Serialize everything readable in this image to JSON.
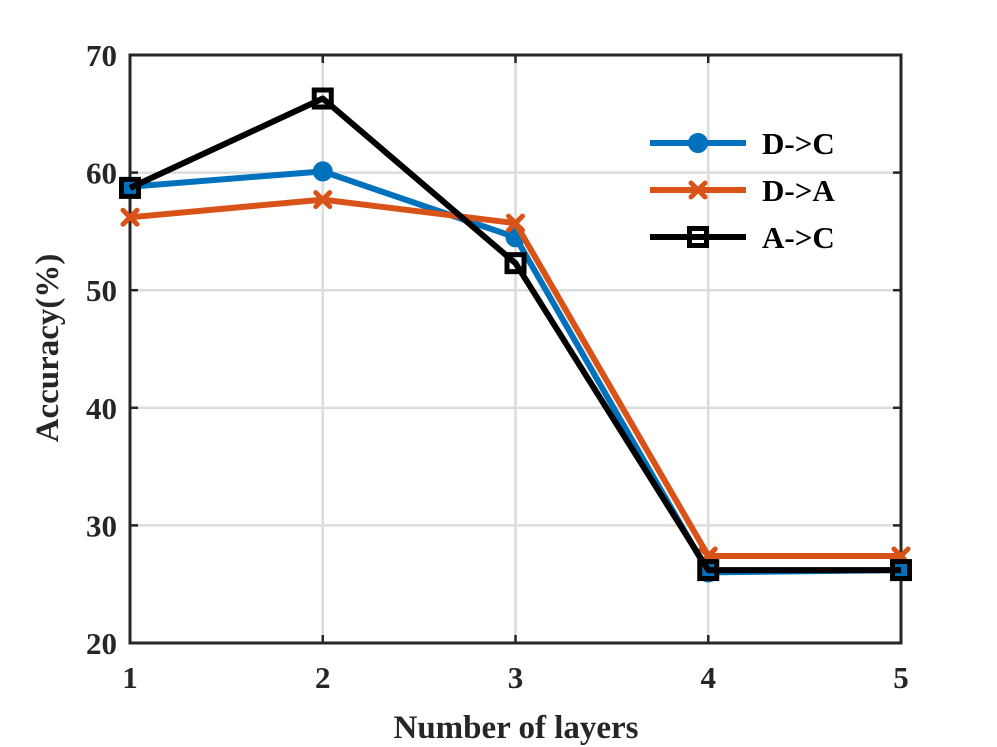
{
  "chart_data": {
    "type": "line",
    "xlabel": "Number of layers",
    "ylabel": "Accuracy(%)",
    "x": [
      1,
      2,
      3,
      4,
      5
    ],
    "xticks": [
      "1",
      "2",
      "3",
      "4",
      "5"
    ],
    "yticks": [
      "20",
      "30",
      "40",
      "50",
      "60",
      "70"
    ],
    "xlim": [
      1,
      5
    ],
    "ylim": [
      20,
      70
    ],
    "grid": true,
    "legend_position": "top-right",
    "series": [
      {
        "name": "D->C",
        "values": [
          58.8,
          60.1,
          54.5,
          26.0,
          26.2
        ],
        "color": "#0072BD",
        "marker": "circle"
      },
      {
        "name": "D->A",
        "values": [
          56.2,
          57.7,
          55.7,
          27.4,
          27.4
        ],
        "color": "#D95319",
        "marker": "x"
      },
      {
        "name": "A->C",
        "values": [
          58.7,
          66.3,
          52.3,
          26.2,
          26.2
        ],
        "color": "#000000",
        "marker": "square"
      }
    ]
  }
}
